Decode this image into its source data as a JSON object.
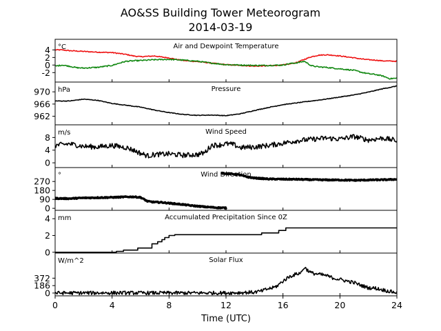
{
  "figure": {
    "title_line1": "AO&SS Building Tower Meteorogram",
    "title_line2": "2014-03-19",
    "xlabel": "Time (UTC)",
    "colors": {
      "temperature": "#ee1111",
      "dewpoint": "#118811",
      "default": "#000000"
    }
  },
  "chart_data": [
    {
      "type": "line",
      "id": "temp",
      "title": "Air and Dewpoint Temperature",
      "unit": "°C",
      "xlim": [
        0,
        24
      ],
      "ylim": [
        -4.5,
        6.8
      ],
      "yticks": [
        "4",
        "2",
        "0",
        "-2"
      ],
      "ytick_values": [
        4,
        2,
        0,
        -2
      ],
      "series": [
        {
          "name": "",
          "color": "#ee1111",
          "noise": 0.12,
          "x": [
            0,
            0.5,
            1,
            2,
            3,
            4,
            5,
            5.5,
            6,
            6.5,
            7,
            7.5,
            8,
            8.5,
            9,
            10,
            11,
            11.5,
            12,
            13,
            14,
            15,
            16,
            16.5,
            17,
            17.5,
            18,
            18.5,
            19,
            19.5,
            20,
            21,
            21.5,
            22,
            22.5,
            23,
            24
          ],
          "y": [
            4.0,
            4.0,
            3.8,
            3.6,
            3.4,
            3.3,
            2.8,
            2.4,
            2.2,
            2.3,
            2.4,
            2.1,
            1.9,
            1.5,
            1.2,
            0.9,
            0.5,
            0.3,
            0.1,
            -0.1,
            -0.3,
            -0.2,
            0.0,
            0.3,
            0.7,
            1.5,
            2.2,
            2.6,
            2.7,
            2.6,
            2.4,
            1.9,
            1.6,
            1.4,
            1.3,
            1.1,
            1.0
          ]
        },
        {
          "name": "",
          "color": "#118811",
          "noise": 0.15,
          "x": [
            0,
            0.5,
            1,
            1.5,
            2,
            3,
            4,
            4.5,
            5,
            5.5,
            6,
            7,
            8,
            9,
            10,
            11,
            12,
            13,
            14,
            15,
            16,
            16.5,
            17,
            17.5,
            18,
            18.5,
            19,
            20,
            21,
            21.5,
            22,
            22.5,
            23,
            23.5,
            24
          ],
          "y": [
            -0.3,
            0.0,
            -0.3,
            -0.7,
            -0.8,
            -0.6,
            -0.1,
            0.5,
            1.0,
            1.1,
            1.2,
            1.4,
            1.5,
            1.3,
            1.0,
            0.5,
            0.1,
            0.0,
            -0.1,
            -0.1,
            0.0,
            0.4,
            0.6,
            1.0,
            -0.2,
            -0.5,
            -0.6,
            -1.0,
            -1.4,
            -1.9,
            -2.3,
            -2.5,
            -2.9,
            -3.6,
            -3.5
          ]
        }
      ]
    },
    {
      "type": "line",
      "id": "pres",
      "title": "Pressure",
      "unit": "hPa",
      "xlim": [
        0,
        24
      ],
      "ylim": [
        959.2,
        973.2
      ],
      "yticks": [
        "970",
        "966",
        "962"
      ],
      "ytick_values": [
        970,
        966,
        962
      ],
      "series": [
        {
          "name": "",
          "color": "#000000",
          "noise": 0.1,
          "x": [
            0,
            1,
            2,
            3,
            4,
            5,
            6,
            7,
            8,
            9,
            10,
            11,
            12,
            13,
            14,
            15,
            16,
            17,
            18,
            19,
            20,
            21,
            22,
            23,
            24
          ],
          "y": [
            967.0,
            967.0,
            967.6,
            967.2,
            966.2,
            965.6,
            965.0,
            964.0,
            963.2,
            962.6,
            962.3,
            962.4,
            962.2,
            962.8,
            963.9,
            964.9,
            965.8,
            966.4,
            967.0,
            967.6,
            968.3,
            969.0,
            969.9,
            971.0,
            971.9
          ]
        }
      ]
    },
    {
      "type": "line",
      "id": "wind",
      "title": "Wind Speed",
      "unit": "m/s",
      "xlim": [
        0,
        24
      ],
      "ylim": [
        -1.5,
        12.0
      ],
      "yticks": [
        "8",
        "4",
        "0"
      ],
      "ytick_values": [
        8,
        4,
        0
      ],
      "series": [
        {
          "name": "",
          "color": "#000000",
          "noise": 0.8,
          "x": [
            0,
            1,
            2,
            3,
            4,
            5,
            5.5,
            6,
            6.5,
            7,
            8,
            9,
            10,
            10.5,
            11,
            11.5,
            12,
            12.5,
            13,
            14,
            15,
            16,
            17,
            18,
            19,
            20,
            21,
            22,
            23,
            24
          ],
          "y": [
            5.5,
            6.0,
            5.2,
            5.0,
            5.5,
            4.8,
            4.0,
            3.0,
            2.2,
            2.6,
            2.8,
            2.4,
            2.6,
            3.2,
            5.6,
            5.6,
            6.0,
            5.8,
            4.8,
            5.0,
            5.5,
            6.2,
            7.0,
            7.4,
            7.8,
            7.5,
            8.3,
            7.2,
            7.8,
            7.0
          ]
        }
      ]
    },
    {
      "type": "scatter",
      "id": "wdir",
      "title": "Wind Direction",
      "unit": "°",
      "xlim": [
        0,
        24
      ],
      "ylim": [
        -20,
        410
      ],
      "yticks": [
        "270",
        "180",
        "90",
        "0"
      ],
      "ytick_values": [
        270,
        180,
        90,
        0
      ],
      "series": [
        {
          "name": "",
          "color": "#000000",
          "noise": 6,
          "x": [
            0,
            1,
            2,
            3,
            4,
            5,
            5.5,
            6,
            6.5,
            7,
            7.5,
            8,
            8.5,
            9,
            9.5,
            10,
            10.5,
            11,
            11.5,
            12.0
          ],
          "y": [
            100,
            98,
            105,
            108,
            110,
            115,
            116,
            110,
            70,
            62,
            60,
            52,
            45,
            38,
            28,
            22,
            15,
            10,
            6,
            4
          ]
        },
        {
          "name": "",
          "color": "#000000",
          "noise": 6,
          "x": [
            11.7,
            12.0,
            12.5,
            13,
            13.5,
            14,
            15,
            16,
            17,
            18,
            19,
            20,
            21,
            22,
            23,
            24
          ],
          "y": [
            355,
            350,
            345,
            335,
            315,
            305,
            295,
            293,
            292,
            288,
            286,
            285,
            282,
            285,
            287,
            292
          ]
        }
      ]
    },
    {
      "type": "line",
      "id": "prec",
      "title": "Accumulated Precipitation Since 0Z",
      "unit": "mm",
      "xlim": [
        0,
        24
      ],
      "ylim": [
        -0.1,
        5.0
      ],
      "yticks": [
        "4",
        "2",
        "0"
      ],
      "ytick_values": [
        4,
        2,
        0
      ],
      "series": [
        {
          "name": "",
          "color": "#000000",
          "noise": 0,
          "step": true,
          "x": [
            0,
            4.3,
            4.8,
            5.8,
            6.8,
            7.2,
            7.5,
            7.7,
            8.0,
            8.4,
            14.5,
            15.7,
            16.2,
            24
          ],
          "y": [
            0,
            0.1,
            0.25,
            0.5,
            1.0,
            1.25,
            1.5,
            1.75,
            2.0,
            2.1,
            2.3,
            2.6,
            2.9,
            2.9
          ]
        }
      ]
    },
    {
      "type": "line",
      "id": "solar",
      "title": "Solar Flux",
      "unit": "W/m^2",
      "xlim": [
        0,
        24
      ],
      "ylim": [
        -70,
        1000
      ],
      "yticks": [
        "372",
        "186",
        "0"
      ],
      "ytick_values": [
        372,
        186,
        0
      ],
      "series": [
        {
          "name": "",
          "color": "#000000",
          "noise": 45,
          "x": [
            0,
            4,
            6,
            8,
            10,
            12,
            13,
            14,
            14.5,
            15,
            15.3,
            15.6,
            16,
            16.5,
            17,
            17.3,
            17.5,
            17.7,
            18,
            18.5,
            19,
            19.5,
            20,
            20.5,
            21,
            21.5,
            22,
            22.5,
            23,
            23.5,
            24
          ],
          "y": [
            0,
            5,
            3,
            2,
            2,
            3,
            10,
            20,
            50,
            110,
            130,
            180,
            300,
            420,
            480,
            520,
            650,
            580,
            500,
            470,
            440,
            380,
            340,
            300,
            260,
            190,
            130,
            120,
            80,
            40,
            10
          ]
        }
      ]
    }
  ]
}
